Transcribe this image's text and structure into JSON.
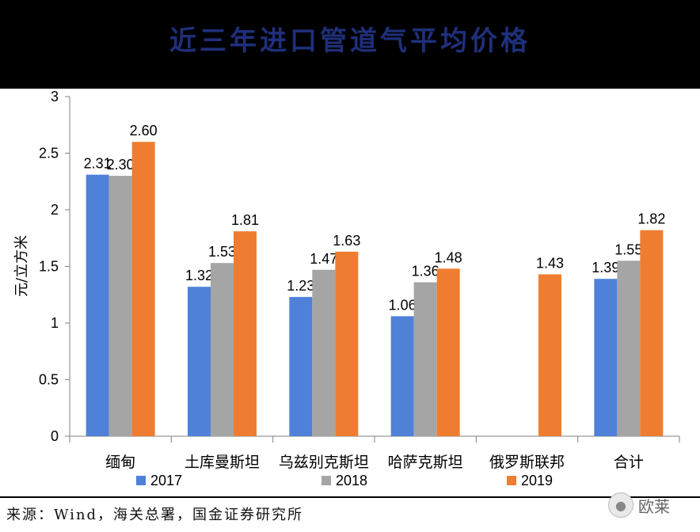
{
  "title": "近三年进口管道气平均价格",
  "chart_data": {
    "type": "bar",
    "ylabel": "元/立方米",
    "ylim": [
      0,
      3
    ],
    "yticks": [
      "0",
      "0.5",
      "1",
      "1.5",
      "2",
      "2.5",
      "3"
    ],
    "categories": [
      "缅甸",
      "土库曼斯坦",
      "乌兹别克斯坦",
      "哈萨克斯坦",
      "俄罗斯联邦",
      "合计"
    ],
    "series": [
      {
        "name": "2017",
        "color": "#4f81d9",
        "values": [
          2.31,
          1.32,
          1.23,
          1.06,
          null,
          1.39
        ],
        "labels": [
          "2.31",
          "1.32",
          "1.23",
          "1.06",
          "",
          "1.39"
        ]
      },
      {
        "name": "2018",
        "color": "#a5a5a5",
        "values": [
          2.3,
          1.53,
          1.47,
          1.36,
          null,
          1.55
        ],
        "labels": [
          "2.30",
          "1.53",
          "1.47",
          "1.36",
          "",
          "1.55"
        ]
      },
      {
        "name": "2019",
        "color": "#ef7d31",
        "values": [
          2.6,
          1.81,
          1.63,
          1.48,
          1.43,
          1.82
        ],
        "labels": [
          "2.60",
          "1.81",
          "1.63",
          "1.48",
          "1.43",
          "1.82"
        ]
      }
    ],
    "legend_position": "bottom"
  },
  "source": "来源：Wind，海关总署，国金证券研究所",
  "watermark": "欧莱"
}
